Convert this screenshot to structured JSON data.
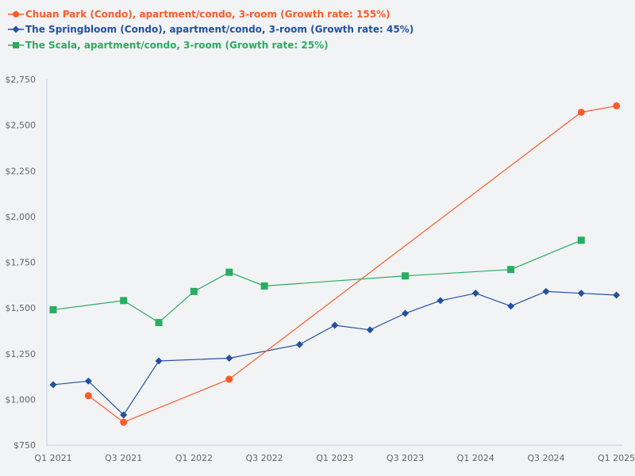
{
  "legend": [
    {
      "label": "Chuan Park (Condo), apartment/condo, 3-room (Growth rate: 155%)",
      "color": "#f95d2a",
      "marker": "circle"
    },
    {
      "label": "The Springbloom (Condo), apartment/condo, 3-room (Growth rate: 45%)",
      "color": "#2351a0",
      "marker": "diamond"
    },
    {
      "label": "The Scala, apartment/condo, 3-room (Growth rate: 25%)",
      "color": "#27ae60",
      "marker": "square"
    }
  ],
  "axes": {
    "y_ticks": [
      "$750",
      "$1,000",
      "$1,250",
      "$1,500",
      "$1,750",
      "$2,000",
      "$2,250",
      "$2,500",
      "$2,750"
    ],
    "x_ticks": [
      "Q1 2021",
      "Q3 2021",
      "Q1 2022",
      "Q3 2022",
      "Q1 2023",
      "Q3 2023",
      "Q1 2024",
      "Q3 2024",
      "Q1 2025"
    ]
  },
  "chart_data": {
    "type": "line",
    "title": "",
    "xlabel": "",
    "ylabel": "",
    "ylim": [
      750,
      2750
    ],
    "grid": false,
    "legend_position": "top-left",
    "x": [
      "Q1 2021",
      "Q2 2021",
      "Q3 2021",
      "Q4 2021",
      "Q1 2022",
      "Q2 2022",
      "Q3 2022",
      "Q4 2022",
      "Q1 2023",
      "Q2 2023",
      "Q3 2023",
      "Q4 2023",
      "Q1 2024",
      "Q2 2024",
      "Q3 2024",
      "Q4 2024",
      "Q1 2025"
    ],
    "series": [
      {
        "name": "Chuan Park (Condo), apartment/condo, 3-room (Growth rate: 155%)",
        "color": "#f95d2a",
        "marker": "circle",
        "values": [
          null,
          1020,
          875,
          null,
          null,
          1110,
          null,
          null,
          null,
          null,
          null,
          null,
          null,
          null,
          null,
          2570,
          2605
        ]
      },
      {
        "name": "The Springbloom (Condo), apartment/condo, 3-room (Growth rate: 45%)",
        "color": "#2351a0",
        "marker": "diamond",
        "values": [
          1080,
          1100,
          915,
          1210,
          null,
          1225,
          null,
          1300,
          1405,
          1380,
          1470,
          1540,
          1580,
          1510,
          1590,
          1580,
          1570
        ]
      },
      {
        "name": "The Scala, apartment/condo, 3-room (Growth rate: 25%)",
        "color": "#27ae60",
        "marker": "square",
        "values": [
          1490,
          null,
          1540,
          1420,
          1590,
          1695,
          1620,
          null,
          null,
          null,
          1675,
          null,
          null,
          1710,
          null,
          1870,
          null
        ]
      }
    ]
  }
}
